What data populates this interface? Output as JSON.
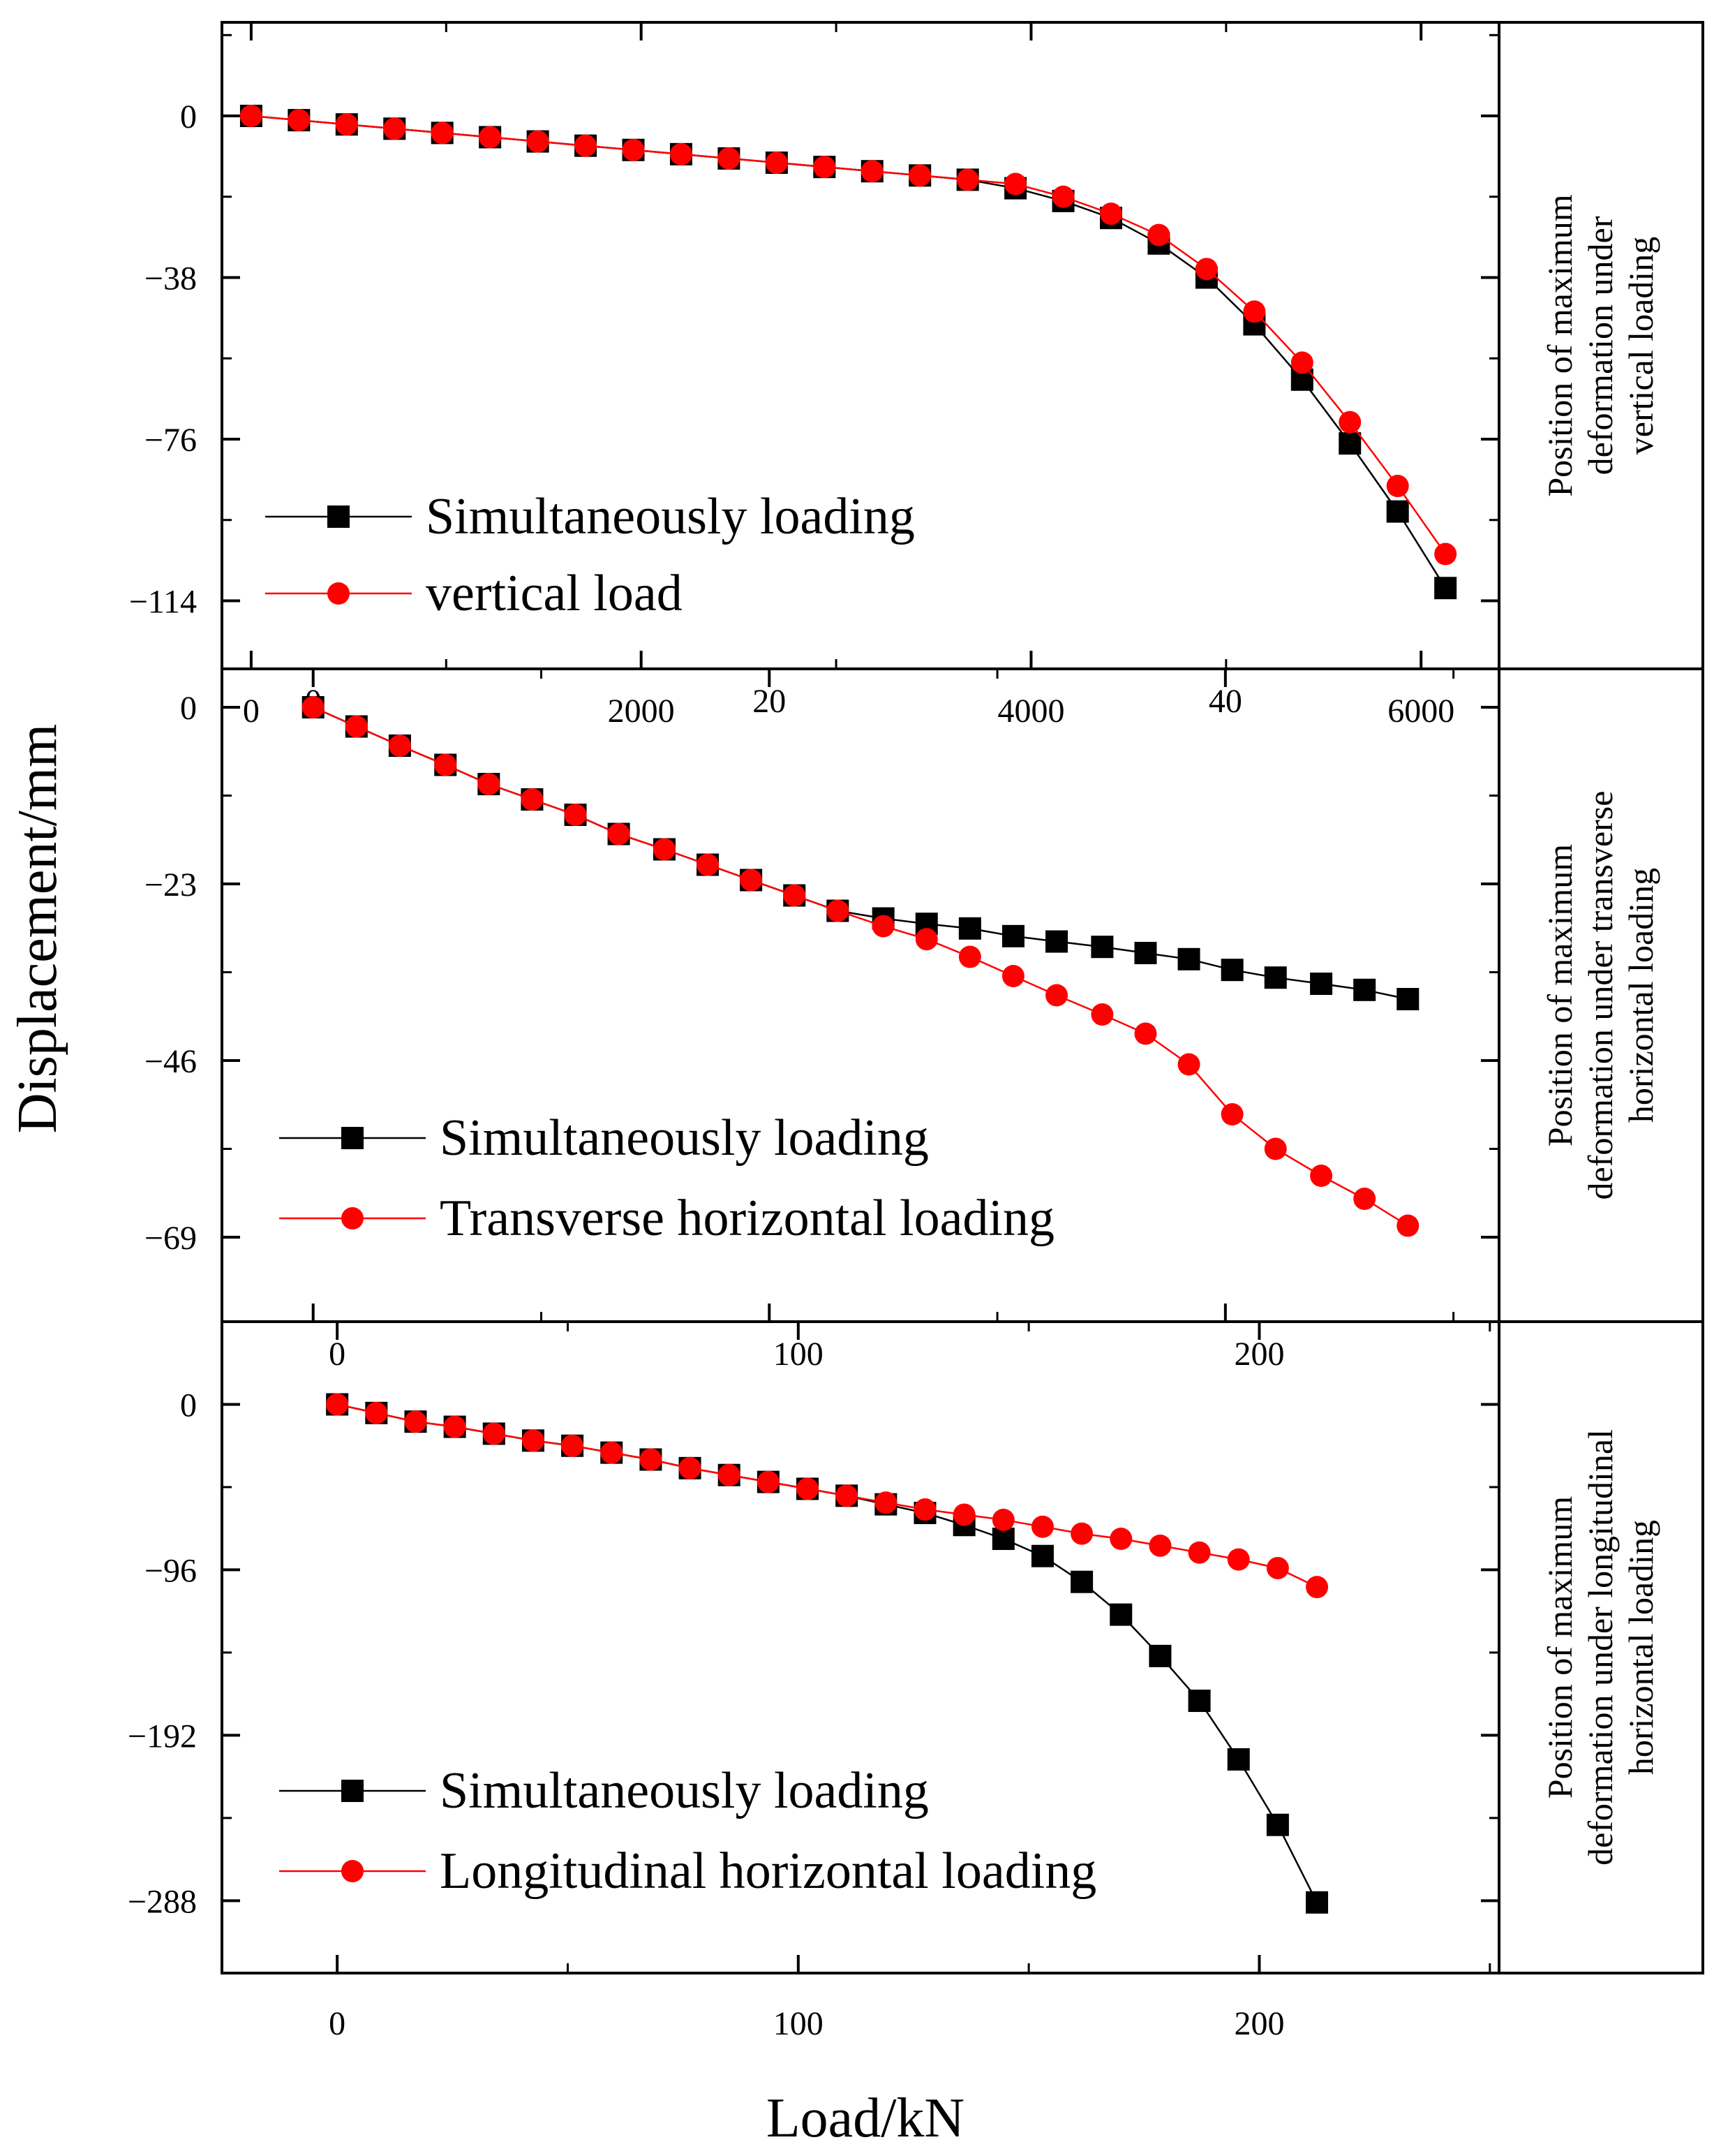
{
  "figure": {
    "ylabel": "Displacement/mm",
    "xlabel": "Load/kN"
  },
  "colors": {
    "simultaneous": "#000000",
    "single": "#ff0000",
    "axis": "#000000"
  },
  "markers": {
    "simultaneous": "square",
    "single": "circle"
  },
  "chart_data": [
    {
      "type": "line",
      "panel": "vertical",
      "xlabel": "Load/kN",
      "ylabel": "Displacement/mm",
      "xlim": [
        -150,
        6400
      ],
      "ylim": [
        -130,
        22
      ],
      "xticks": [
        0,
        2000,
        4000,
        6000
      ],
      "xtick_labels": [
        "0",
        "2000",
        "4000",
        "6000"
      ],
      "yticks": [
        0,
        -38,
        -76,
        -114
      ],
      "ytick_labels": [
        "0",
        "−38",
        "−76",
        "−114"
      ],
      "side_label": [
        "Position of maximum",
        "deformation under",
        "vertical loading"
      ],
      "series": [
        {
          "name": "Simultaneously loading",
          "x": [
            0,
            245,
            490,
            735,
            980,
            1225,
            1470,
            1715,
            1960,
            2205,
            2450,
            2695,
            2940,
            3185,
            3430,
            3675,
            3920,
            4165,
            4410,
            4655,
            4900,
            5145,
            5390,
            5635,
            5880,
            6125
          ],
          "y": [
            0,
            -1,
            -2,
            -3,
            -4,
            -5,
            -6,
            -7,
            -8,
            -9,
            -10,
            -11,
            -12,
            -13,
            -14,
            -15,
            -17,
            -20,
            -24,
            -30,
            -38,
            -49,
            -62,
            -77,
            -93,
            -111
          ]
        },
        {
          "name": "vertical load",
          "x": [
            0,
            245,
            490,
            735,
            980,
            1225,
            1470,
            1715,
            1960,
            2205,
            2450,
            2695,
            2940,
            3185,
            3430,
            3675,
            3920,
            4165,
            4410,
            4655,
            4900,
            5145,
            5390,
            5635,
            5880,
            6125
          ],
          "y": [
            0,
            -1,
            -2,
            -3,
            -4,
            -5,
            -6,
            -7,
            -8,
            -9,
            -10,
            -11,
            -12,
            -13,
            -14,
            -15,
            -16,
            -19,
            -23,
            -28,
            -36,
            -46,
            -58,
            -72,
            -87,
            -103
          ]
        }
      ]
    },
    {
      "type": "line",
      "panel": "transverse",
      "xlabel": "Load/kN",
      "ylabel": "Displacement/mm",
      "xlim": [
        -4,
        52
      ],
      "ylim": [
        -80,
        5
      ],
      "xticks": [
        0,
        20,
        40
      ],
      "xtick_labels": [
        "0",
        "20",
        "40"
      ],
      "yticks": [
        0,
        -23,
        -46,
        -69
      ],
      "ytick_labels": [
        "0",
        "−23",
        "−46",
        "−69"
      ],
      "side_label": [
        "Position of maximum",
        "deformation under transverse",
        "horizontal loading"
      ],
      "series": [
        {
          "name": "Simultaneously loading",
          "x": [
            0,
            1.9,
            3.8,
            5.8,
            7.7,
            9.6,
            11.5,
            13.4,
            15.4,
            17.3,
            19.2,
            21.1,
            23.0,
            25.0,
            26.9,
            28.8,
            30.7,
            32.6,
            34.6,
            36.5,
            38.4,
            40.3,
            42.2,
            44.2,
            46.1,
            48.0
          ],
          "y": [
            0,
            -2.5,
            -5,
            -7.5,
            -10,
            -12,
            -14,
            -16.5,
            -18.5,
            -20.5,
            -22.5,
            -24.5,
            -26.5,
            -27.5,
            -28.2,
            -28.8,
            -29.8,
            -30.5,
            -31.2,
            -32,
            -32.8,
            -34.2,
            -35.2,
            -36,
            -36.8,
            -38
          ]
        },
        {
          "name": "Transverse horizontal loading",
          "x": [
            0,
            1.9,
            3.8,
            5.8,
            7.7,
            9.6,
            11.5,
            13.4,
            15.4,
            17.3,
            19.2,
            21.1,
            23.0,
            25.0,
            26.9,
            28.8,
            30.7,
            32.6,
            34.6,
            36.5,
            38.4,
            40.3,
            42.2,
            44.2,
            46.1,
            48.0
          ],
          "y": [
            0,
            -2.5,
            -5,
            -7.5,
            -10,
            -12,
            -14,
            -16.5,
            -18.5,
            -20.5,
            -22.5,
            -24.5,
            -26.5,
            -28.5,
            -30.2,
            -32.5,
            -35,
            -37.5,
            -40,
            -42.5,
            -46.5,
            -53,
            -57.5,
            -61,
            -64,
            -67.5
          ]
        }
      ]
    },
    {
      "type": "line",
      "panel": "longitudinal",
      "xlabel": "Load/kN",
      "ylabel": "Displacement/mm",
      "xlim": [
        -25,
        252
      ],
      "ylim": [
        -330,
        48
      ],
      "xticks": [
        0,
        100,
        200
      ],
      "xtick_labels": [
        "0",
        "100",
        "200"
      ],
      "yticks": [
        0,
        -96,
        -192,
        -288
      ],
      "ytick_labels": [
        "0",
        "−96",
        "−192",
        "−288"
      ],
      "side_label": [
        "Position of maximum",
        "deformation under longitudinal",
        "horizontal loading"
      ],
      "series": [
        {
          "name": "Simultaneously loading",
          "x": [
            0,
            8.5,
            17,
            25.5,
            34,
            42.5,
            51,
            59.5,
            68,
            76.5,
            85,
            93.5,
            102,
            110.5,
            119,
            127.5,
            136,
            144.5,
            153,
            161.5,
            170,
            178.5,
            187,
            195.5,
            204,
            212.5
          ],
          "y": [
            0,
            -5,
            -10,
            -13,
            -17,
            -21,
            -24,
            -28,
            -32,
            -37,
            -41,
            -45,
            -49,
            -53,
            -58,
            -63,
            -70,
            -78,
            -88,
            -103,
            -122,
            -146,
            -172,
            -206,
            -244,
            -289
          ]
        },
        {
          "name": "Longitudinal horizontal loading",
          "x": [
            0,
            8.5,
            17,
            25.5,
            34,
            42.5,
            51,
            59.5,
            68,
            76.5,
            85,
            93.5,
            102,
            110.5,
            119,
            127.5,
            136,
            144.5,
            153,
            161.5,
            170,
            178.5,
            187,
            195.5,
            204,
            212.5
          ],
          "y": [
            0,
            -5,
            -10,
            -13,
            -17,
            -21,
            -24,
            -28,
            -32,
            -37,
            -41,
            -45,
            -49,
            -53,
            -57,
            -61,
            -64,
            -67,
            -71,
            -75,
            -78,
            -82,
            -86,
            -90,
            -95,
            -106
          ]
        }
      ]
    }
  ]
}
